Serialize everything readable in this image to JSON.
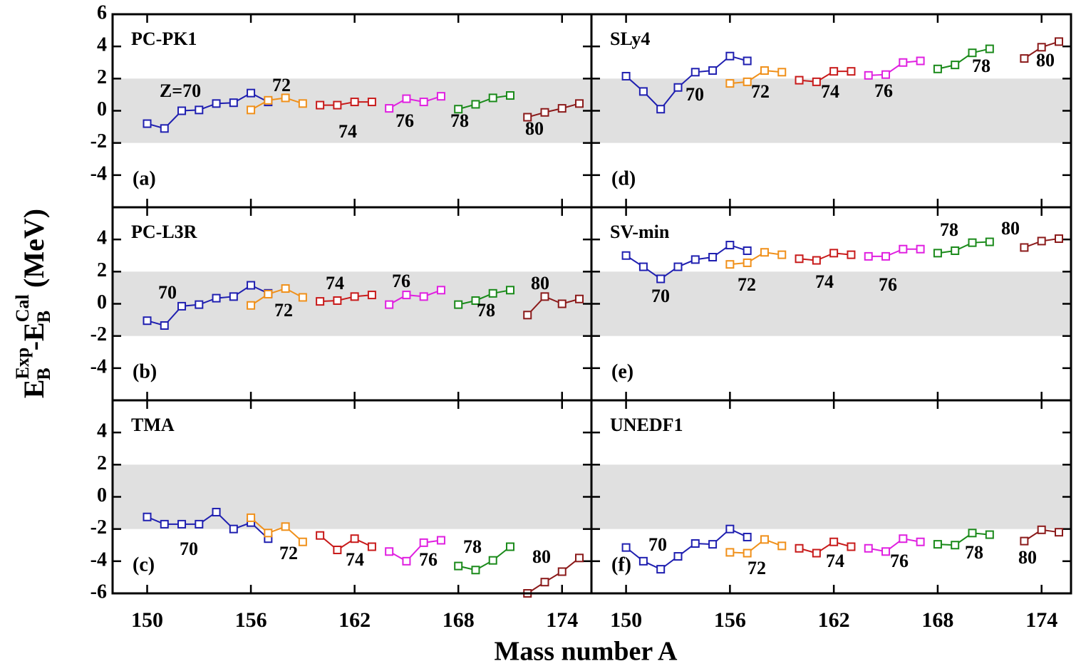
{
  "xlabel": "Mass number A",
  "ylabel": {
    "base1": "E",
    "sup1": "Exp",
    "sub1": "B",
    "base2": "-E",
    "sup2": "Cal",
    "sub2": "B",
    "unit": "(MeV)"
  },
  "chart_data": [
    {
      "type": "line",
      "title": "PC-PK1",
      "panel_label": "(a)",
      "xlim": [
        148,
        175.7
      ],
      "ylim": [
        -6,
        6
      ],
      "xticks": [
        150,
        156,
        162,
        168,
        174
      ],
      "yticks": [
        6,
        4,
        2,
        0,
        -2,
        -4
      ],
      "band": [
        -2,
        2
      ],
      "series": [
        {
          "name": "Z=70",
          "color": "#1f1fb0",
          "x": [
            150,
            151,
            152,
            153,
            154,
            155,
            156,
            157
          ],
          "values": [
            -0.8,
            -1.1,
            0.0,
            0.05,
            0.45,
            0.5,
            1.1,
            0.55
          ]
        },
        {
          "name": "72",
          "color": "#f0901a",
          "x": [
            156,
            157,
            158,
            159
          ],
          "values": [
            0.05,
            0.65,
            0.8,
            0.45
          ]
        },
        {
          "name": "74",
          "color": "#c81a1a",
          "x": [
            160,
            161,
            162,
            163
          ],
          "values": [
            0.35,
            0.35,
            0.55,
            0.55
          ]
        },
        {
          "name": "76",
          "color": "#e020e0",
          "x": [
            164,
            165,
            166,
            167
          ],
          "values": [
            0.15,
            0.75,
            0.55,
            0.9
          ]
        },
        {
          "name": "78",
          "color": "#1a8a1a",
          "x": [
            168,
            169,
            170,
            171
          ],
          "values": [
            0.1,
            0.4,
            0.8,
            0.95
          ]
        },
        {
          "name": "80",
          "color": "#8b1a1a",
          "x": [
            172,
            173,
            174,
            175
          ],
          "values": [
            -0.4,
            -0.1,
            0.15,
            0.45
          ]
        }
      ]
    },
    {
      "type": "line",
      "title": "PC-L3R",
      "panel_label": "(b)",
      "xlim": [
        148,
        175.7
      ],
      "ylim": [
        -6,
        6
      ],
      "xticks": [
        150,
        156,
        162,
        168,
        174
      ],
      "yticks": [
        4,
        2,
        0,
        -2,
        -4
      ],
      "band": [
        -2,
        2
      ],
      "series": [
        {
          "name": "70",
          "color": "#1f1fb0",
          "x": [
            150,
            151,
            152,
            153,
            154,
            155,
            156,
            157
          ],
          "values": [
            -1.05,
            -1.35,
            -0.15,
            -0.05,
            0.35,
            0.45,
            1.15,
            0.65
          ]
        },
        {
          "name": "72",
          "color": "#f0901a",
          "x": [
            156,
            157,
            158,
            159
          ],
          "values": [
            -0.1,
            0.6,
            0.95,
            0.4
          ]
        },
        {
          "name": "74",
          "color": "#c81a1a",
          "x": [
            160,
            161,
            162,
            163
          ],
          "values": [
            0.15,
            0.2,
            0.45,
            0.55
          ]
        },
        {
          "name": "76",
          "color": "#e020e0",
          "x": [
            164,
            165,
            166,
            167
          ],
          "values": [
            -0.05,
            0.55,
            0.45,
            0.85
          ]
        },
        {
          "name": "78",
          "color": "#1a8a1a",
          "x": [
            168,
            169,
            170,
            171
          ],
          "values": [
            -0.05,
            0.2,
            0.65,
            0.85
          ]
        },
        {
          "name": "80",
          "color": "#8b1a1a",
          "x": [
            172,
            173,
            174,
            175
          ],
          "values": [
            -0.7,
            0.45,
            0.0,
            0.3
          ]
        }
      ]
    },
    {
      "type": "line",
      "title": "TMA",
      "panel_label": "(c)",
      "xlim": [
        148,
        175.7
      ],
      "ylim": [
        -6,
        6
      ],
      "xticks": [
        150,
        156,
        162,
        168,
        174
      ],
      "yticks": [
        4,
        2,
        0,
        -2,
        -4,
        -6
      ],
      "band": [
        -2,
        2
      ],
      "series": [
        {
          "name": "70",
          "color": "#1f1fb0",
          "x": [
            150,
            151,
            152,
            153,
            154,
            155,
            156,
            157
          ],
          "values": [
            -1.25,
            -1.7,
            -1.7,
            -1.7,
            -0.95,
            -2.0,
            -1.6,
            -2.6
          ]
        },
        {
          "name": "72",
          "color": "#f0901a",
          "x": [
            156,
            157,
            158,
            159
          ],
          "values": [
            -1.3,
            -2.25,
            -1.85,
            -2.8
          ]
        },
        {
          "name": "74",
          "color": "#c81a1a",
          "x": [
            160,
            161,
            162,
            163
          ],
          "values": [
            -2.4,
            -3.3,
            -2.6,
            -3.1
          ]
        },
        {
          "name": "76",
          "color": "#e020e0",
          "x": [
            164,
            165,
            166,
            167
          ],
          "values": [
            -3.4,
            -4.0,
            -2.85,
            -2.7
          ]
        },
        {
          "name": "78",
          "color": "#1a8a1a",
          "x": [
            168,
            169,
            170,
            171
          ],
          "values": [
            -4.3,
            -4.55,
            -3.95,
            -3.1
          ]
        },
        {
          "name": "80",
          "color": "#8b1a1a",
          "x": [
            172,
            173,
            174,
            175
          ],
          "values": [
            -6.0,
            -5.3,
            -4.65,
            -3.8
          ]
        }
      ]
    },
    {
      "type": "line",
      "title": "SLy4",
      "panel_label": "(d)",
      "xlim": [
        148,
        175.7
      ],
      "ylim": [
        -6,
        6
      ],
      "xticks": [
        150,
        156,
        162,
        168,
        174
      ],
      "yticks": [
        4,
        2,
        0,
        -2,
        -4
      ],
      "band": [
        -2,
        2
      ],
      "series": [
        {
          "name": "70",
          "color": "#1f1fb0",
          "x": [
            150,
            151,
            152,
            153,
            154,
            155,
            156,
            157
          ],
          "values": [
            2.15,
            1.2,
            0.1,
            1.45,
            2.4,
            2.5,
            3.4,
            3.1
          ]
        },
        {
          "name": "72",
          "color": "#f0901a",
          "x": [
            156,
            157,
            158,
            159
          ],
          "values": [
            1.7,
            1.8,
            2.5,
            2.4
          ]
        },
        {
          "name": "74",
          "color": "#c81a1a",
          "x": [
            160,
            161,
            162,
            163
          ],
          "values": [
            1.9,
            1.8,
            2.45,
            2.45
          ]
        },
        {
          "name": "76",
          "color": "#e020e0",
          "x": [
            164,
            165,
            166,
            167
          ],
          "values": [
            2.2,
            2.25,
            3.0,
            3.1
          ]
        },
        {
          "name": "78",
          "color": "#1a8a1a",
          "x": [
            168,
            169,
            170,
            171
          ],
          "values": [
            2.6,
            2.85,
            3.6,
            3.85
          ]
        },
        {
          "name": "80",
          "color": "#8b1a1a",
          "x": [
            173,
            174,
            175
          ],
          "values": [
            3.25,
            3.95,
            4.3
          ]
        }
      ]
    },
    {
      "type": "line",
      "title": "SV-min",
      "panel_label": "(e)",
      "xlim": [
        148,
        175.7
      ],
      "ylim": [
        -6,
        6
      ],
      "xticks": [
        150,
        156,
        162,
        168,
        174
      ],
      "yticks": [
        4,
        2,
        0,
        -2,
        -4
      ],
      "band": [
        -2,
        2
      ],
      "series": [
        {
          "name": "70",
          "color": "#1f1fb0",
          "x": [
            150,
            151,
            152,
            153,
            154,
            155,
            156,
            157
          ],
          "values": [
            3.0,
            2.3,
            1.55,
            2.3,
            2.75,
            2.9,
            3.65,
            3.3
          ]
        },
        {
          "name": "72",
          "color": "#f0901a",
          "x": [
            156,
            157,
            158,
            159
          ],
          "values": [
            2.45,
            2.55,
            3.2,
            3.05
          ]
        },
        {
          "name": "74",
          "color": "#c81a1a",
          "x": [
            160,
            161,
            162,
            163
          ],
          "values": [
            2.8,
            2.7,
            3.15,
            3.05
          ]
        },
        {
          "name": "76",
          "color": "#e020e0",
          "x": [
            164,
            165,
            166,
            167
          ],
          "values": [
            2.95,
            2.95,
            3.4,
            3.4
          ]
        },
        {
          "name": "78",
          "color": "#1a8a1a",
          "x": [
            168,
            169,
            170,
            171
          ],
          "values": [
            3.15,
            3.3,
            3.8,
            3.85
          ]
        },
        {
          "name": "80",
          "color": "#8b1a1a",
          "x": [
            173,
            174,
            175
          ],
          "values": [
            3.5,
            3.9,
            4.05
          ]
        }
      ]
    },
    {
      "type": "line",
      "title": "UNEDF1",
      "panel_label": "(f)",
      "xlim": [
        148,
        175.7
      ],
      "ylim": [
        -6,
        6
      ],
      "xticks": [
        150,
        156,
        162,
        168,
        174
      ],
      "yticks": [
        4,
        2,
        0,
        -2,
        -4
      ],
      "band": [
        -2,
        2
      ],
      "series": [
        {
          "name": "70",
          "color": "#1f1fb0",
          "x": [
            150,
            151,
            152,
            153,
            154,
            155,
            156,
            157
          ],
          "values": [
            -3.15,
            -4.0,
            -4.5,
            -3.7,
            -2.9,
            -2.95,
            -2.0,
            -2.5
          ]
        },
        {
          "name": "72",
          "color": "#f0901a",
          "x": [
            156,
            157,
            158,
            159
          ],
          "values": [
            -3.45,
            -3.5,
            -2.65,
            -3.05
          ]
        },
        {
          "name": "74",
          "color": "#c81a1a",
          "x": [
            160,
            161,
            162,
            163
          ],
          "values": [
            -3.2,
            -3.5,
            -2.8,
            -3.1
          ]
        },
        {
          "name": "76",
          "color": "#e020e0",
          "x": [
            164,
            165,
            166,
            167
          ],
          "values": [
            -3.2,
            -3.4,
            -2.6,
            -2.8
          ]
        },
        {
          "name": "78",
          "color": "#1a8a1a",
          "x": [
            168,
            169,
            170,
            171
          ],
          "values": [
            -2.95,
            -3.0,
            -2.25,
            -2.35
          ]
        },
        {
          "name": "80",
          "color": "#8b1a1a",
          "x": [
            173,
            174,
            175
          ],
          "values": [
            -2.75,
            -2.05,
            -2.2
          ]
        }
      ]
    }
  ]
}
